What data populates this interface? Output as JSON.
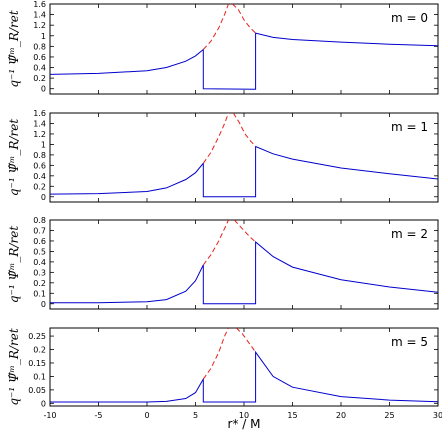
{
  "chart_data": {
    "type": "line",
    "xlabel": "r* / M",
    "ylabel": "q⁻¹ Ψ̃ᵐ_R/ret",
    "xlim": [
      -10,
      30
    ],
    "xticks": [
      "-10",
      "-5",
      "0",
      "5",
      "10",
      "15",
      "20",
      "25",
      "30"
    ],
    "grid": false,
    "line_colors": {
      "regularized": "#0000cc",
      "retarded": "#e8221c"
    },
    "panels": [
      {
        "label": "m = 0",
        "ylim": [
          -0.1,
          1.6
        ],
        "yticks": [
          "0",
          "0.2",
          "0.4",
          "0.6",
          "0.8",
          "1",
          "1.2",
          "1.4",
          "1.6"
        ],
        "series": [
          {
            "style": "solid blue",
            "x": [
              -10,
              -5,
              0,
              2,
              4,
              5,
              5.8,
              5.8,
              11.2,
              11.2,
              13,
              15,
              20,
              25,
              30
            ],
            "y": [
              0.27,
              0.29,
              0.34,
              0.4,
              0.52,
              0.62,
              0.74,
              0.0,
              -0.01,
              1.05,
              0.97,
              0.93,
              0.88,
              0.84,
              0.81
            ]
          },
          {
            "style": "dashed red",
            "x": [
              5.8,
              6.6,
              7.4,
              8.0,
              8.4
            ],
            "y": [
              0.74,
              0.9,
              1.15,
              1.4,
              1.6
            ]
          },
          {
            "style": "dashed red",
            "x": [
              8.8,
              9.4,
              10.0,
              10.6,
              11.2
            ],
            "y": [
              1.6,
              1.5,
              1.3,
              1.16,
              1.05
            ]
          }
        ]
      },
      {
        "label": "m = 1",
        "ylim": [
          -0.1,
          1.6
        ],
        "yticks": [
          "0",
          "0.2",
          "0.4",
          "0.6",
          "0.8",
          "1",
          "1.2",
          "1.4",
          "1.6"
        ],
        "series": [
          {
            "style": "solid blue",
            "x": [
              -10,
              -5,
              0,
              2,
              4,
              5,
              5.8,
              5.8,
              11.2,
              11.2,
              13,
              15,
              20,
              25,
              30
            ],
            "y": [
              0.05,
              0.06,
              0.1,
              0.17,
              0.33,
              0.46,
              0.64,
              0.0,
              0.0,
              0.96,
              0.82,
              0.72,
              0.55,
              0.44,
              0.34
            ]
          },
          {
            "style": "dashed red",
            "x": [
              5.8,
              6.6,
              7.4,
              8.0,
              8.4
            ],
            "y": [
              0.64,
              0.85,
              1.15,
              1.4,
              1.6
            ]
          },
          {
            "style": "dashed red",
            "x": [
              8.9,
              9.5,
              10.1,
              10.7,
              11.2
            ],
            "y": [
              1.6,
              1.42,
              1.2,
              1.06,
              0.96
            ]
          }
        ]
      },
      {
        "label": "m = 2",
        "ylim": [
          -0.05,
          0.8
        ],
        "yticks": [
          "0",
          "0.1",
          "0.2",
          "0.3",
          "0.4",
          "0.5",
          "0.6",
          "0.7",
          "0.8"
        ],
        "series": [
          {
            "style": "solid blue",
            "x": [
              -10,
              -5,
              0,
              2,
              4,
              5,
              5.8,
              5.8,
              11.2,
              11.2,
              13,
              15,
              20,
              25,
              30
            ],
            "y": [
              0.01,
              0.01,
              0.02,
              0.04,
              0.12,
              0.22,
              0.37,
              0.0,
              0.0,
              0.59,
              0.45,
              0.35,
              0.23,
              0.16,
              0.11
            ]
          },
          {
            "style": "dashed red",
            "x": [
              5.8,
              6.6,
              7.4,
              8.0,
              8.4
            ],
            "y": [
              0.37,
              0.47,
              0.6,
              0.72,
              0.8
            ]
          },
          {
            "style": "dashed red",
            "x": [
              9.0,
              9.6,
              10.2,
              10.7,
              11.2
            ],
            "y": [
              0.8,
              0.74,
              0.68,
              0.63,
              0.59
            ]
          }
        ]
      },
      {
        "label": "m = 5",
        "ylim": [
          -0.01,
          0.28
        ],
        "yticks": [
          "0",
          "0.05",
          "0.1",
          "0.15",
          "0.2",
          "0.25"
        ],
        "series": [
          {
            "style": "solid blue",
            "x": [
              -10,
              -5,
              0,
              2,
              4,
              5,
              5.8,
              5.8,
              11.2,
              11.2,
              13,
              15,
              20,
              25,
              30
            ],
            "y": [
              0.005,
              0.005,
              0.005,
              0.007,
              0.018,
              0.04,
              0.09,
              0.005,
              0.005,
              0.19,
              0.1,
              0.06,
              0.025,
              0.012,
              0.006
            ]
          },
          {
            "style": "dashed red",
            "x": [
              5.8,
              6.6,
              7.4,
              8.0,
              8.4
            ],
            "y": [
              0.09,
              0.13,
              0.19,
              0.25,
              0.28
            ]
          },
          {
            "style": "dashed red",
            "x": [
              9.2,
              9.8,
              10.4,
              10.8,
              11.2
            ],
            "y": [
              0.28,
              0.26,
              0.23,
              0.21,
              0.19
            ]
          }
        ]
      }
    ]
  }
}
